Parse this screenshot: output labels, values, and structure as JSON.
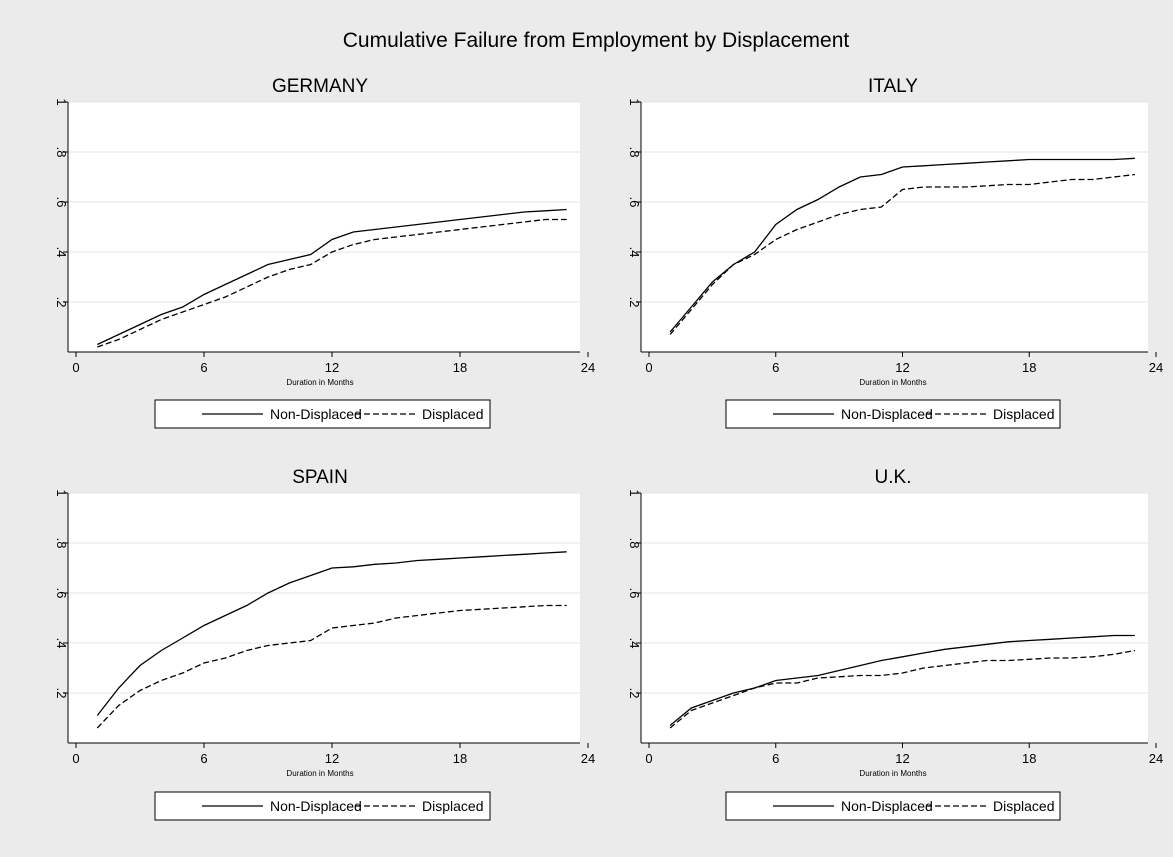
{
  "figure": {
    "title": "Cumulative Failure from Employment by Displacement",
    "background": "#ebebeb",
    "plot_background": "#ffffff",
    "line_color": "#000000",
    "grid_color": "#e4e4e4"
  },
  "chart_data": [
    {
      "type": "line",
      "title": "GERMANY",
      "xlabel": "Duration in Months",
      "ylabel": "",
      "xlim": [
        0,
        24
      ],
      "ylim": [
        0,
        1
      ],
      "xticks": [
        0,
        6,
        12,
        18,
        24
      ],
      "xtick_labels": [
        "0",
        "6",
        "12",
        "18",
        "24"
      ],
      "yticks": [
        0.2,
        0.4,
        0.6,
        0.8,
        1
      ],
      "ytick_labels": [
        ".2",
        ".4",
        ".6",
        ".8",
        "1"
      ],
      "grid": true,
      "legend": "bottom",
      "series": [
        {
          "name": "Non-Displaced",
          "style": "solid",
          "x": [
            1,
            2,
            3,
            4,
            5,
            6,
            7,
            8,
            9,
            10,
            11,
            12,
            13,
            14,
            15,
            16,
            17,
            18,
            19,
            20,
            21,
            22,
            23
          ],
          "y": [
            0.03,
            0.07,
            0.11,
            0.15,
            0.18,
            0.23,
            0.27,
            0.31,
            0.35,
            0.37,
            0.39,
            0.45,
            0.48,
            0.49,
            0.5,
            0.51,
            0.52,
            0.53,
            0.54,
            0.55,
            0.56,
            0.565,
            0.57
          ]
        },
        {
          "name": "Displaced",
          "style": "dashed",
          "x": [
            1,
            2,
            3,
            4,
            5,
            6,
            7,
            8,
            9,
            10,
            11,
            12,
            13,
            14,
            15,
            16,
            17,
            18,
            19,
            20,
            21,
            22,
            23
          ],
          "y": [
            0.02,
            0.05,
            0.09,
            0.13,
            0.16,
            0.19,
            0.22,
            0.26,
            0.3,
            0.33,
            0.35,
            0.4,
            0.43,
            0.45,
            0.46,
            0.47,
            0.48,
            0.49,
            0.5,
            0.51,
            0.52,
            0.53,
            0.53
          ]
        }
      ]
    },
    {
      "type": "line",
      "title": "ITALY",
      "xlabel": "Duration in Months",
      "ylabel": "",
      "xlim": [
        0,
        24
      ],
      "ylim": [
        0,
        1
      ],
      "xticks": [
        0,
        6,
        12,
        18,
        24
      ],
      "xtick_labels": [
        "0",
        "6",
        "12",
        "18",
        "24"
      ],
      "yticks": [
        0.2,
        0.4,
        0.6,
        0.8,
        1
      ],
      "ytick_labels": [
        ".2",
        ".4",
        ".6",
        ".8",
        "1"
      ],
      "grid": true,
      "legend": "bottom",
      "series": [
        {
          "name": "Non-Displaced",
          "style": "solid",
          "x": [
            1,
            2,
            3,
            4,
            5,
            6,
            7,
            8,
            9,
            10,
            11,
            12,
            13,
            14,
            15,
            16,
            17,
            18,
            19,
            20,
            21,
            22,
            23
          ],
          "y": [
            0.08,
            0.18,
            0.28,
            0.35,
            0.4,
            0.51,
            0.57,
            0.61,
            0.66,
            0.7,
            0.71,
            0.74,
            0.745,
            0.75,
            0.755,
            0.76,
            0.765,
            0.77,
            0.77,
            0.77,
            0.77,
            0.77,
            0.775
          ]
        },
        {
          "name": "Displaced",
          "style": "dashed",
          "x": [
            1,
            2,
            3,
            4,
            5,
            6,
            7,
            8,
            9,
            10,
            11,
            12,
            13,
            14,
            15,
            16,
            17,
            18,
            19,
            20,
            21,
            22,
            23
          ],
          "y": [
            0.07,
            0.17,
            0.27,
            0.35,
            0.39,
            0.45,
            0.49,
            0.52,
            0.55,
            0.57,
            0.58,
            0.65,
            0.66,
            0.66,
            0.66,
            0.665,
            0.67,
            0.67,
            0.68,
            0.69,
            0.69,
            0.7,
            0.71
          ]
        }
      ]
    },
    {
      "type": "line",
      "title": "SPAIN",
      "xlabel": "Duration in Months",
      "ylabel": "",
      "xlim": [
        0,
        24
      ],
      "ylim": [
        0,
        1
      ],
      "xticks": [
        0,
        6,
        12,
        18,
        24
      ],
      "xtick_labels": [
        "0",
        "6",
        "12",
        "18",
        "24"
      ],
      "yticks": [
        0.2,
        0.4,
        0.6,
        0.8,
        1
      ],
      "ytick_labels": [
        ".2",
        ".4",
        ".6",
        ".8",
        "1"
      ],
      "grid": true,
      "legend": "bottom",
      "series": [
        {
          "name": "Non-Displaced",
          "style": "solid",
          "x": [
            1,
            2,
            3,
            4,
            5,
            6,
            7,
            8,
            9,
            10,
            11,
            12,
            13,
            14,
            15,
            16,
            17,
            18,
            19,
            20,
            21,
            22,
            23
          ],
          "y": [
            0.11,
            0.22,
            0.31,
            0.37,
            0.42,
            0.47,
            0.51,
            0.55,
            0.6,
            0.64,
            0.67,
            0.7,
            0.705,
            0.715,
            0.72,
            0.73,
            0.735,
            0.74,
            0.745,
            0.75,
            0.755,
            0.76,
            0.765
          ]
        },
        {
          "name": "Displaced",
          "style": "dashed",
          "x": [
            1,
            2,
            3,
            4,
            5,
            6,
            7,
            8,
            9,
            10,
            11,
            12,
            13,
            14,
            15,
            16,
            17,
            18,
            19,
            20,
            21,
            22,
            23
          ],
          "y": [
            0.06,
            0.15,
            0.21,
            0.25,
            0.28,
            0.32,
            0.34,
            0.37,
            0.39,
            0.4,
            0.41,
            0.46,
            0.47,
            0.48,
            0.5,
            0.51,
            0.52,
            0.53,
            0.535,
            0.54,
            0.545,
            0.55,
            0.55
          ]
        }
      ]
    },
    {
      "type": "line",
      "title": "U.K.",
      "xlabel": "Duration in Months",
      "ylabel": "",
      "xlim": [
        0,
        24
      ],
      "ylim": [
        0,
        1
      ],
      "xticks": [
        0,
        6,
        12,
        18,
        24
      ],
      "xtick_labels": [
        "0",
        "6",
        "12",
        "18",
        "24"
      ],
      "yticks": [
        0.2,
        0.4,
        0.6,
        0.8,
        1
      ],
      "ytick_labels": [
        ".2",
        ".4",
        ".6",
        ".8",
        "1"
      ],
      "grid": true,
      "legend": "bottom",
      "series": [
        {
          "name": "Non-Displaced",
          "style": "solid",
          "x": [
            1,
            2,
            3,
            4,
            5,
            6,
            7,
            8,
            9,
            10,
            11,
            12,
            13,
            14,
            15,
            16,
            17,
            18,
            19,
            20,
            21,
            22,
            23
          ],
          "y": [
            0.07,
            0.14,
            0.17,
            0.2,
            0.22,
            0.25,
            0.26,
            0.27,
            0.29,
            0.31,
            0.33,
            0.345,
            0.36,
            0.375,
            0.385,
            0.395,
            0.405,
            0.41,
            0.415,
            0.42,
            0.425,
            0.43,
            0.43
          ]
        },
        {
          "name": "Displaced",
          "style": "dashed",
          "x": [
            1,
            2,
            3,
            4,
            5,
            6,
            7,
            8,
            9,
            10,
            11,
            12,
            13,
            14,
            15,
            16,
            17,
            18,
            19,
            20,
            21,
            22,
            23
          ],
          "y": [
            0.06,
            0.13,
            0.16,
            0.19,
            0.22,
            0.24,
            0.24,
            0.26,
            0.265,
            0.27,
            0.27,
            0.28,
            0.3,
            0.31,
            0.32,
            0.33,
            0.33,
            0.335,
            0.34,
            0.34,
            0.345,
            0.355,
            0.37
          ]
        }
      ]
    }
  ]
}
